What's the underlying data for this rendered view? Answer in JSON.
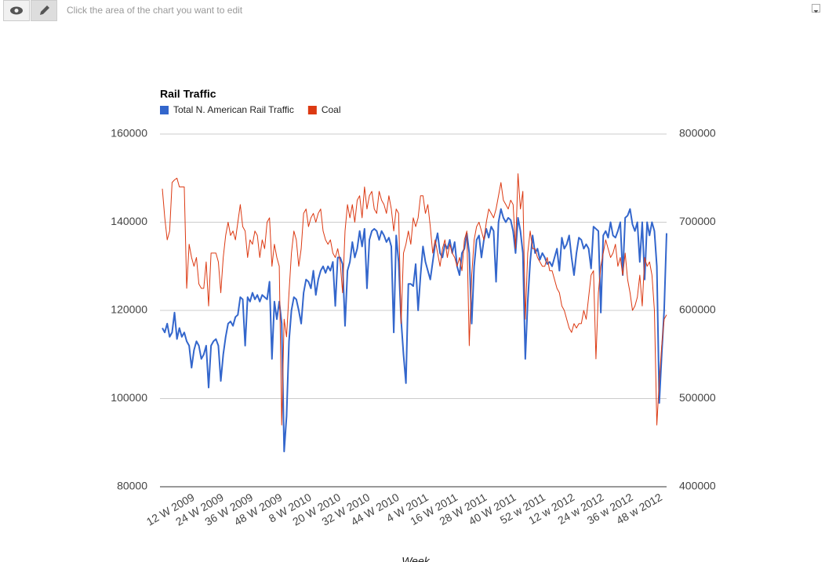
{
  "toolbar": {
    "hint": "Click the area of the chart you want to edit"
  },
  "chart_data": {
    "type": "line",
    "title": "Rail Traffic",
    "x_label": "Week",
    "categories": [
      null,
      null,
      null,
      null,
      null,
      null,
      null,
      null,
      null,
      null,
      null,
      "12 W 2009",
      null,
      null,
      null,
      null,
      null,
      null,
      null,
      null,
      null,
      null,
      null,
      "24 W 2009",
      null,
      null,
      null,
      null,
      null,
      null,
      null,
      null,
      null,
      null,
      null,
      "36 W 2009",
      null,
      null,
      null,
      null,
      null,
      null,
      null,
      null,
      null,
      null,
      null,
      "48 W 2009",
      null,
      null,
      null,
      null,
      null,
      null,
      null,
      null,
      null,
      null,
      null,
      "8 W 2010",
      null,
      null,
      null,
      null,
      null,
      null,
      null,
      null,
      null,
      null,
      null,
      "20 W 2010",
      null,
      null,
      null,
      null,
      null,
      null,
      null,
      null,
      null,
      null,
      null,
      "32 W 2010",
      null,
      null,
      null,
      null,
      null,
      null,
      null,
      null,
      null,
      null,
      null,
      "44 W 2010",
      null,
      null,
      null,
      null,
      null,
      null,
      null,
      null,
      null,
      null,
      null,
      "4 W 2011",
      null,
      null,
      null,
      null,
      null,
      null,
      null,
      null,
      null,
      null,
      null,
      "16 W 2011",
      null,
      null,
      null,
      null,
      null,
      null,
      null,
      null,
      null,
      null,
      null,
      "28 W 2011",
      null,
      null,
      null,
      null,
      null,
      null,
      null,
      null,
      null,
      null,
      null,
      "40 W 2011",
      null,
      null,
      null,
      null,
      null,
      null,
      null,
      null,
      null,
      null,
      null,
      "52 w 2011",
      null,
      null,
      null,
      null,
      null,
      null,
      null,
      null,
      null,
      null,
      null,
      "12 w 2012",
      null,
      null,
      null,
      null,
      null,
      null,
      null,
      null,
      null,
      null,
      null,
      "24 w 2012",
      null,
      null,
      null,
      null,
      null,
      null,
      null,
      null,
      null,
      null,
      null,
      "36 w 2012",
      null,
      null,
      null,
      null,
      null,
      null,
      null,
      null,
      null,
      null,
      null,
      "48 w 2012",
      null,
      null,
      null,
      null
    ],
    "series": [
      {
        "name": "Total N. American Rail Traffic",
        "color": "#3366cc",
        "axis": "y",
        "values": [
          116000,
          115000,
          117000,
          114000,
          115000,
          119500,
          113500,
          116000,
          114000,
          115000,
          113000,
          112000,
          107000,
          111000,
          113000,
          112000,
          109000,
          110000,
          112000,
          102500,
          112000,
          113000,
          113500,
          112000,
          104000,
          110000,
          114000,
          117000,
          117500,
          116500,
          118500,
          119000,
          123000,
          122500,
          112000,
          123000,
          122000,
          124000,
          122500,
          123500,
          122000,
          123500,
          123000,
          122500,
          126500,
          109000,
          122000,
          118000,
          122000,
          117000,
          88000,
          96000,
          113000,
          120000,
          123000,
          122500,
          120000,
          117000,
          124000,
          127000,
          126500,
          125000,
          129000,
          123500,
          127000,
          129000,
          130000,
          128500,
          130000,
          129000,
          131000,
          121000,
          132000,
          132000,
          130500,
          116500,
          129000,
          131000,
          135500,
          132000,
          134000,
          138000,
          134500,
          138500,
          125000,
          136000,
          138000,
          138500,
          138000,
          136000,
          138000,
          137000,
          135500,
          136500,
          134500,
          115000,
          137000,
          131000,
          118000,
          110000,
          103500,
          126000,
          126000,
          125500,
          130500,
          120000,
          128000,
          134500,
          131000,
          129000,
          127000,
          131000,
          135000,
          137500,
          133000,
          132000,
          135000,
          134000,
          136000,
          133000,
          135500,
          130000,
          128000,
          133000,
          134000,
          137500,
          133000,
          117000,
          130000,
          136000,
          137000,
          132000,
          136000,
          138500,
          136500,
          139000,
          138000,
          126500,
          140000,
          143000,
          141000,
          140000,
          141000,
          140500,
          138000,
          133000,
          141000,
          138000,
          133000,
          109000,
          122000,
          131000,
          137000,
          133000,
          134000,
          131500,
          133000,
          132000,
          130500,
          131000,
          130000,
          132000,
          134000,
          129000,
          136500,
          134000,
          135000,
          137000,
          132000,
          128000,
          133000,
          136500,
          136000,
          134000,
          135000,
          134000,
          129500,
          139000,
          138500,
          138000,
          119500,
          137000,
          138000,
          136500,
          140000,
          137000,
          136500,
          138000,
          140000,
          128000,
          141000,
          141500,
          143000,
          139500,
          138000,
          140000,
          131000,
          140000,
          127000,
          140000,
          137000,
          140000,
          138000,
          130000,
          99000,
          110000,
          120000,
          137500
        ]
      },
      {
        "name": "Coal",
        "color": "#dc3912",
        "axis": "y2",
        "values": [
          738000,
          705000,
          680000,
          690000,
          745000,
          748000,
          750000,
          740000,
          740000,
          740000,
          625000,
          675000,
          660000,
          650000,
          660000,
          630000,
          625000,
          625000,
          655000,
          605000,
          665000,
          665000,
          665000,
          655000,
          620000,
          660000,
          685000,
          700000,
          685000,
          690000,
          680000,
          700000,
          720000,
          695000,
          690000,
          660000,
          680000,
          675000,
          690000,
          685000,
          660000,
          680000,
          670000,
          700000,
          705000,
          650000,
          675000,
          660000,
          650000,
          470000,
          590000,
          570000,
          620000,
          665000,
          690000,
          680000,
          650000,
          670000,
          710000,
          715000,
          695000,
          705000,
          710000,
          700000,
          710000,
          715000,
          690000,
          680000,
          675000,
          680000,
          665000,
          660000,
          670000,
          655000,
          620000,
          690000,
          720000,
          705000,
          720000,
          700000,
          725000,
          730000,
          705000,
          740000,
          715000,
          730000,
          735000,
          715000,
          710000,
          735000,
          725000,
          720000,
          710000,
          730000,
          715000,
          690000,
          715000,
          710000,
          585000,
          665000,
          675000,
          690000,
          675000,
          705000,
          695000,
          705000,
          730000,
          730000,
          710000,
          720000,
          695000,
          665000,
          680000,
          665000,
          650000,
          670000,
          680000,
          660000,
          675000,
          665000,
          660000,
          650000,
          660000,
          645000,
          680000,
          690000,
          560000,
          640000,
          680000,
          695000,
          700000,
          690000,
          680000,
          700000,
          715000,
          710000,
          705000,
          715000,
          730000,
          745000,
          725000,
          720000,
          715000,
          725000,
          720000,
          670000,
          755000,
          715000,
          735000,
          590000,
          665000,
          690000,
          670000,
          670000,
          660000,
          655000,
          650000,
          650000,
          660000,
          645000,
          645000,
          635000,
          625000,
          620000,
          605000,
          600000,
          590000,
          580000,
          575000,
          585000,
          580000,
          585000,
          585000,
          600000,
          590000,
          615000,
          640000,
          645000,
          545000,
          620000,
          650000,
          665000,
          680000,
          670000,
          660000,
          665000,
          675000,
          650000,
          660000,
          640000,
          665000,
          635000,
          620000,
          600000,
          605000,
          615000,
          640000,
          605000,
          660000,
          650000,
          655000,
          640000,
          600000,
          470000,
          520000,
          560000,
          590000,
          595000
        ]
      }
    ],
    "ylim": [
      80000,
      160000
    ],
    "yticks": [
      80000,
      100000,
      120000,
      140000,
      160000
    ],
    "y2lim": [
      400000,
      800000
    ],
    "y2ticks": [
      400000,
      500000,
      600000,
      700000,
      800000
    ],
    "grid": true,
    "legend": "top-left"
  }
}
